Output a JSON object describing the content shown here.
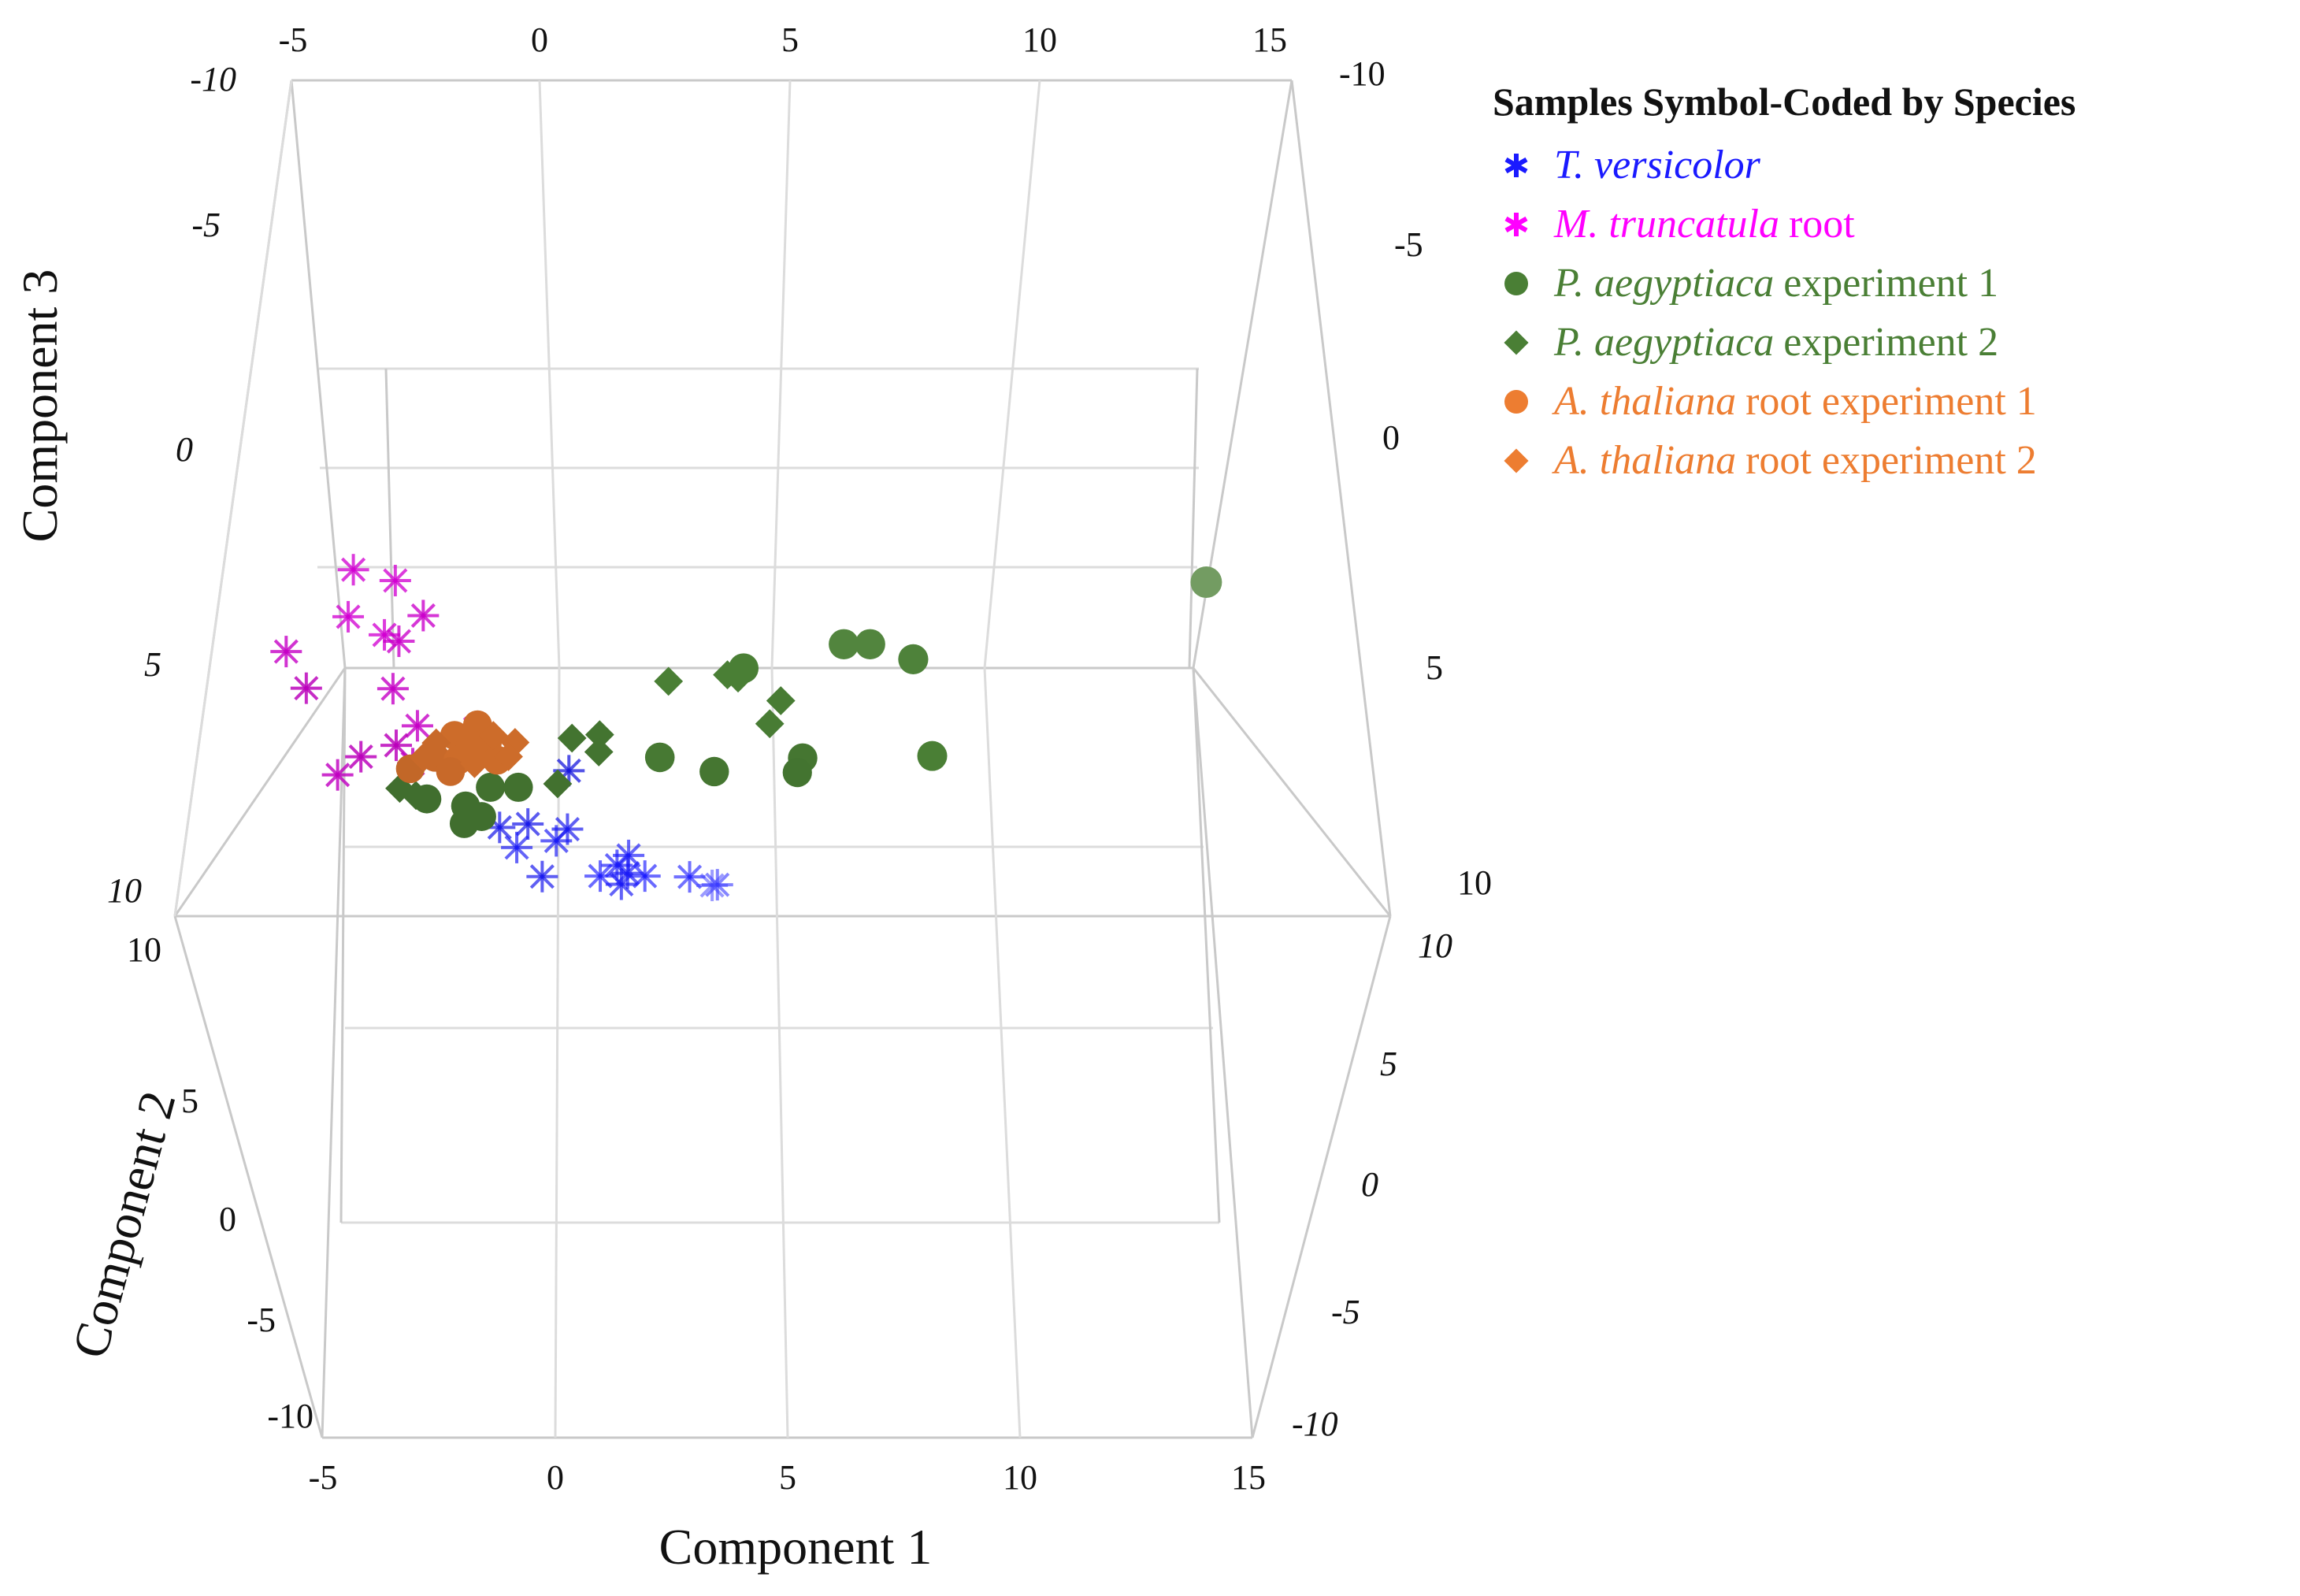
{
  "chart_data": {
    "type": "scatter3d",
    "title": "",
    "xlabel": "Component 1",
    "ylabel": "Component 2",
    "zlabel": "Component 3",
    "xlim": [
      -5,
      15
    ],
    "ylim": [
      -10,
      10
    ],
    "zlim": [
      -10,
      10
    ],
    "x_ticks": [
      "-5",
      "0",
      "5",
      "10",
      "15"
    ],
    "y_ticks": [
      "10",
      "5",
      "0",
      "-5",
      "-10"
    ],
    "z_ticks": [
      "-10",
      "-5",
      "0",
      "5",
      "10"
    ],
    "legend": {
      "title": "Samples Symbol-Coded by Species",
      "items": [
        {
          "key": "tv",
          "symbol": "asterisk",
          "color": "#1a1aff",
          "species": "T. versicolor",
          "suffix": ""
        },
        {
          "key": "mt",
          "symbol": "asterisk",
          "color": "#ff00ff",
          "species": "M. truncatula",
          "suffix": "root"
        },
        {
          "key": "pa1",
          "symbol": "circle",
          "color": "#4a7f35",
          "species": "P. aegyptiaca",
          "suffix": "experiment 1"
        },
        {
          "key": "pa2",
          "symbol": "diamond",
          "color": "#4a7f35",
          "species": "P. aegyptiaca",
          "suffix": "experiment 2"
        },
        {
          "key": "at1",
          "symbol": "circle",
          "color": "#ed7d31",
          "species": "A. thaliana",
          "suffix": "root experiment 1"
        },
        {
          "key": "at2",
          "symbol": "diamond",
          "color": "#ed7d31",
          "species": "A. thaliana",
          "suffix": "root experiment 2"
        }
      ]
    },
    "series": [
      {
        "name": "T. versicolor",
        "symbol": "asterisk",
        "color": "#1a1aff",
        "points": [
          [
            0.0,
            2.0,
            8.5
          ],
          [
            0.5,
            2.0,
            8.4
          ],
          [
            1.2,
            1.5,
            8.6
          ],
          [
            1.0,
            1.0,
            9.0
          ],
          [
            0.3,
            1.0,
            9.2
          ],
          [
            2.3,
            0.5,
            9.5
          ],
          [
            2.1,
            0.5,
            9.8
          ],
          [
            2.3,
            0.8,
            10.0
          ],
          [
            1.8,
            0.0,
            10.2
          ],
          [
            2.6,
            0.0,
            10.2
          ],
          [
            3.4,
            -0.5,
            10.3
          ],
          [
            3.9,
            -2.0,
            10.8
          ],
          [
            3.8,
            -4.0,
            11.2
          ],
          [
            0.8,
            1.5,
            10.0
          ],
          [
            2.2,
            1.0,
            10.3
          ],
          [
            1.2,
            3.0,
            6.8
          ]
        ]
      },
      {
        "name": "M. truncatula root",
        "symbol": "asterisk",
        "color": "#ff00ff",
        "points": [
          [
            -3.0,
            4.0,
            1.2
          ],
          [
            -2.2,
            4.0,
            1.5
          ],
          [
            -3.0,
            4.0,
            2.5
          ],
          [
            -2.3,
            4.0,
            3.0
          ],
          [
            -1.6,
            4.5,
            2.5
          ],
          [
            -2.0,
            4.5,
            3.2
          ],
          [
            -4.0,
            5.0,
            3.5
          ],
          [
            -3.5,
            6.0,
            4.5
          ],
          [
            -2.0,
            5.0,
            4.5
          ],
          [
            -1.5,
            5.0,
            5.5
          ],
          [
            -1.8,
            6.0,
            6.0
          ],
          [
            -0.5,
            4.0,
            5.6
          ],
          [
            -2.4,
            6.0,
            6.3
          ],
          [
            -2.8,
            5.5,
            6.8
          ],
          [
            -1.5,
            5.5,
            6.5
          ]
        ]
      },
      {
        "name": "P. aegyptiaca experiment 1",
        "symbol": "circle",
        "color": "#4a7f35",
        "points": [
          [
            13.5,
            -5.0,
            0.5
          ],
          [
            6.2,
            -1.0,
            3.0
          ],
          [
            6.7,
            -1.0,
            3.0
          ],
          [
            7.5,
            -0.5,
            3.5
          ],
          [
            4.3,
            0.0,
            3.8
          ],
          [
            7.8,
            0.0,
            6.5
          ],
          [
            2.8,
            1.0,
            6.5
          ],
          [
            5.4,
            1.5,
            6.5
          ],
          [
            3.8,
            1.5,
            6.9
          ],
          [
            5.3,
            2.0,
            6.9
          ],
          [
            -0.2,
            2.5,
            7.3
          ],
          [
            0.3,
            2.5,
            7.3
          ],
          [
            -1.3,
            3.0,
            7.6
          ],
          [
            -0.6,
            3.0,
            7.8
          ],
          [
            -0.3,
            3.0,
            8.1
          ],
          [
            -0.6,
            3.0,
            8.3
          ]
        ]
      },
      {
        "name": "P. aegyptiaca experiment 2",
        "symbol": "diamond",
        "color": "#4a7f35",
        "points": [
          [
            2.9,
            0.0,
            4.2
          ],
          [
            4.0,
            0.0,
            4.0
          ],
          [
            4.2,
            0.0,
            4.1
          ],
          [
            5.0,
            0.5,
            4.8
          ],
          [
            4.8,
            0.5,
            5.5
          ],
          [
            1.7,
            2.0,
            5.8
          ],
          [
            1.2,
            2.0,
            5.9
          ],
          [
            1.7,
            2.0,
            6.3
          ],
          [
            1.0,
            2.5,
            7.2
          ],
          [
            -1.8,
            3.0,
            7.3
          ],
          [
            -1.5,
            3.0,
            7.5
          ]
        ]
      },
      {
        "name": "A. thaliana root experiment 1",
        "symbol": "circle",
        "color": "#ed7d31",
        "points": [
          [
            -0.5,
            3.0,
            5.5
          ],
          [
            -0.9,
            3.0,
            5.8
          ],
          [
            -0.3,
            3.0,
            6.0
          ],
          [
            -1.2,
            3.5,
            6.4
          ],
          [
            -0.8,
            3.0,
            6.5
          ],
          [
            -0.4,
            3.0,
            6.3
          ],
          [
            -1.6,
            4.0,
            6.7
          ],
          [
            -0.9,
            3.5,
            6.8
          ],
          [
            -0.1,
            3.0,
            6.5
          ],
          [
            -0.6,
            3.0,
            6.1
          ]
        ]
      },
      {
        "name": "A. thaliana root experiment 2",
        "symbol": "diamond",
        "color": "#ed7d31",
        "points": [
          [
            -0.2,
            3.0,
            5.8
          ],
          [
            0.2,
            3.0,
            6.0
          ],
          [
            -1.2,
            3.5,
            6.0
          ],
          [
            0.1,
            3.0,
            6.4
          ],
          [
            -0.5,
            3.0,
            6.6
          ],
          [
            -1.4,
            3.5,
            6.4
          ]
        ]
      }
    ]
  }
}
